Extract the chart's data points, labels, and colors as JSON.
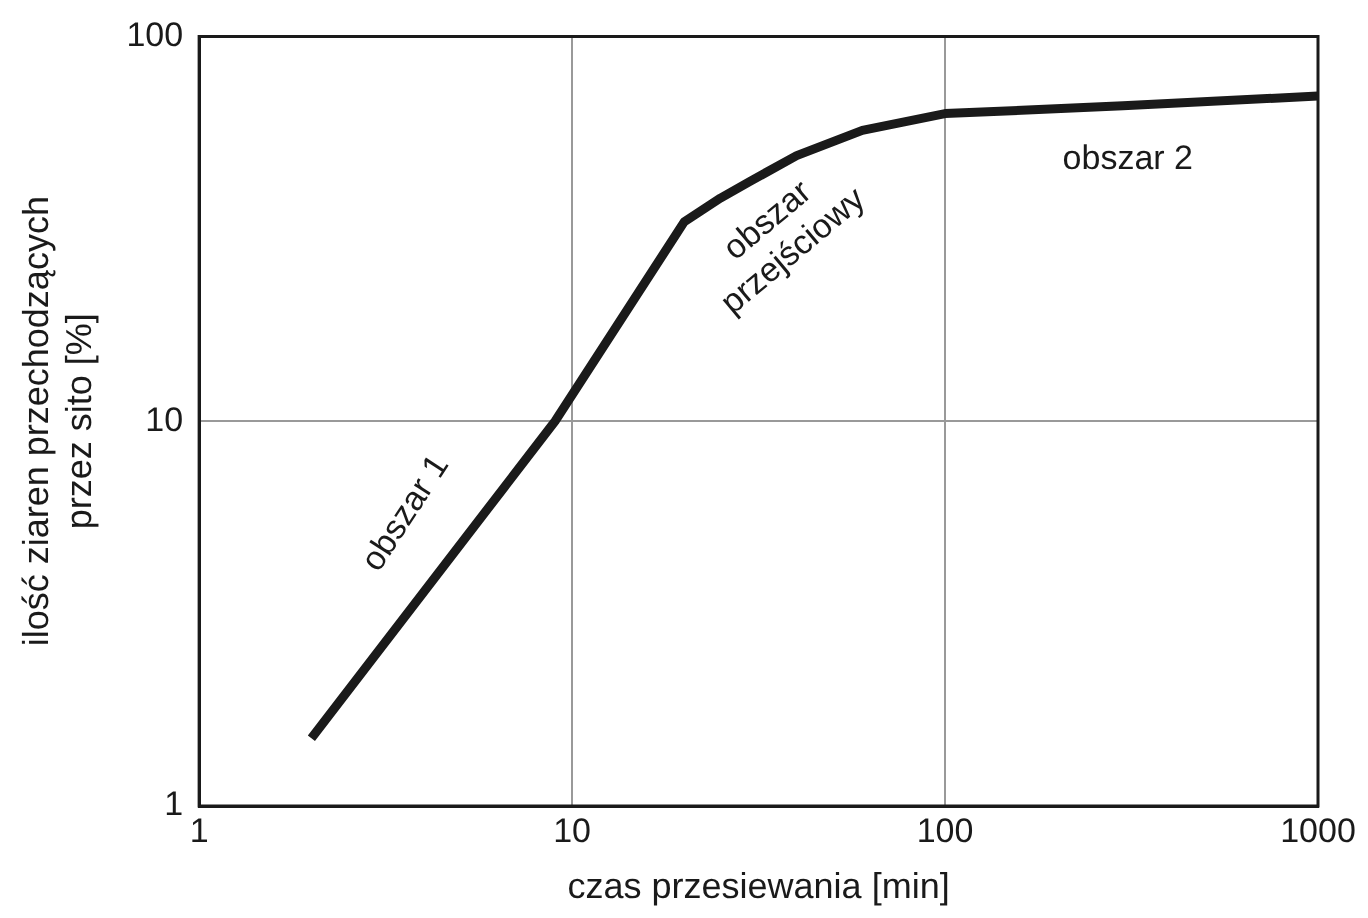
{
  "chart_data": {
    "type": "line",
    "xlabel": "czas przesiewania [min]",
    "ylabel": "ilość ziaren przechodzących\nprzez sito [%]",
    "x": [
      2,
      9,
      20,
      25,
      30,
      40,
      60,
      100,
      300,
      1000
    ],
    "series": [
      {
        "color": "#1a1a1a",
        "values": [
          1.5,
          10,
          33,
          38,
          42,
          49,
          57,
          63,
          66,
          70
        ]
      }
    ],
    "log": "xy",
    "xlim": [
      1,
      1000
    ],
    "ylim": [
      1,
      100
    ],
    "xticks": [
      1,
      10,
      100,
      1000
    ],
    "yticks": [
      1,
      10,
      100
    ],
    "grid": true,
    "marker": "none",
    "line_style": "solid",
    "annotations": [
      "obszar 1",
      "obszar\nprzejściowy",
      "obszar 2"
    ]
  }
}
